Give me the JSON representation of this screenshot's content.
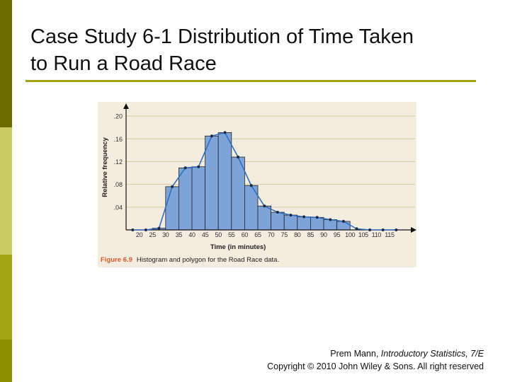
{
  "slide": {
    "title": "Case Study 6-1 Distribution of Time Taken\nto Run a Road Race",
    "accent_color": "#a3a514",
    "sidebar_colors": [
      "#6b6b00",
      "#c9cc63",
      "#a3a514",
      "#8f9000"
    ]
  },
  "figure": {
    "caption_label": "Figure 6.9",
    "caption_text": "Histogram and polygon for the Road Race data."
  },
  "footer": {
    "author": "Prem Mann, ",
    "book": "Introductory Statistics, 7/E",
    "copyright": "Copyright © 2010 John Wiley & Sons. All right reserved"
  },
  "chart_data": {
    "type": "bar",
    "subtype": "histogram with frequency polygon",
    "xlabel": "Time (in minutes)",
    "ylabel": "Relative frequency",
    "x_ticks": [
      "20",
      "25",
      "30",
      "35",
      "40",
      "45",
      "50",
      "55",
      "60",
      "65",
      "70",
      "75",
      "80",
      "85",
      "90",
      "95",
      "100",
      "105",
      "110",
      "115"
    ],
    "y_ticks": [
      ".04",
      ".08",
      ".12",
      ".16",
      ".20"
    ],
    "ylim": [
      0,
      0.22
    ],
    "bin_edges": [
      25,
      30,
      35,
      40,
      45,
      50,
      55,
      60,
      65,
      70,
      75,
      80,
      85,
      90,
      95,
      100
    ],
    "values": [
      0.003,
      0.076,
      0.109,
      0.111,
      0.165,
      0.171,
      0.128,
      0.078,
      0.042,
      0.031,
      0.026,
      0.023,
      0.022,
      0.018,
      0.015
    ],
    "polygon": {
      "x": [
        17.5,
        22.5,
        27.5,
        32.5,
        37.5,
        42.5,
        47.5,
        52.5,
        57.5,
        62.5,
        67.5,
        72.5,
        77.5,
        82.5,
        87.5,
        92.5,
        97.5,
        102.5,
        107.5,
        112.5,
        117.5
      ],
      "y": [
        0,
        0,
        0.003,
        0.076,
        0.109,
        0.111,
        0.165,
        0.171,
        0.128,
        0.078,
        0.042,
        0.031,
        0.026,
        0.023,
        0.022,
        0.018,
        0.015,
        0.002,
        0,
        0,
        0
      ]
    },
    "bar_color": "#7ea3d8",
    "polygon_color": "#2f6fbf",
    "grid": true
  }
}
